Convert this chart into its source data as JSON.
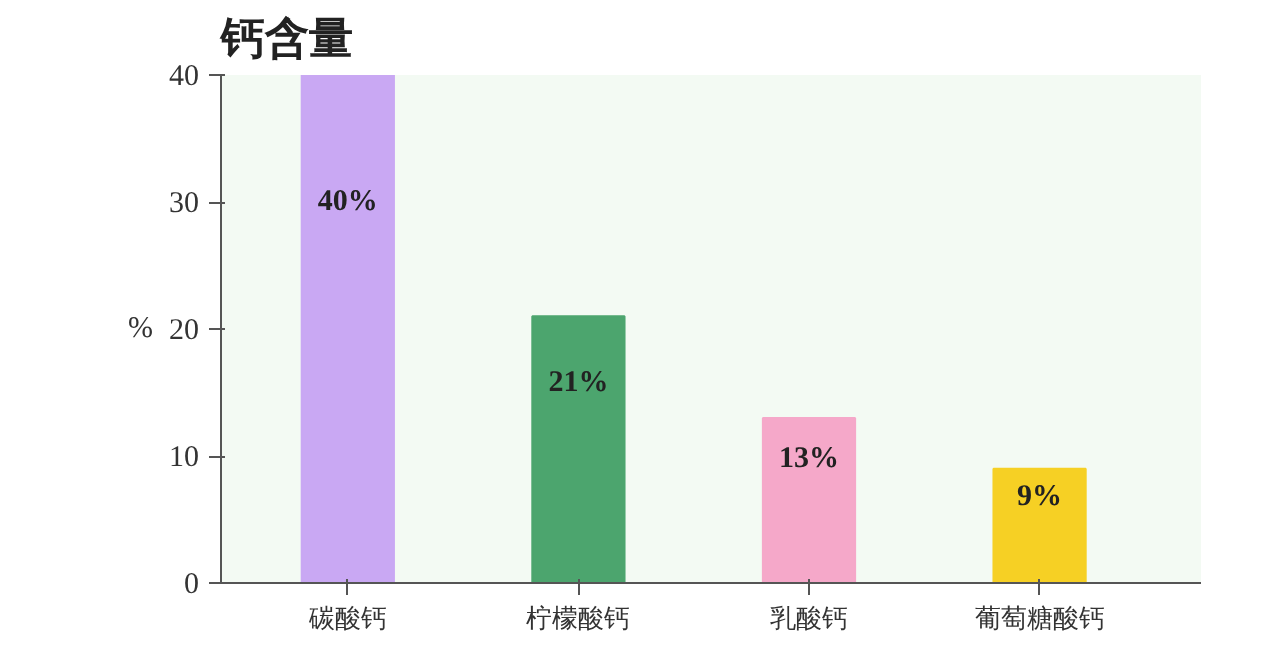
{
  "chart_data": {
    "type": "bar",
    "title": "钙含量",
    "ylabel": "%",
    "categories": [
      "碳酸钙",
      "柠檬酸钙",
      "乳酸钙",
      "葡萄糖酸钙"
    ],
    "values": [
      40,
      21,
      13,
      9
    ],
    "colors": [
      "#c9a8f3",
      "#4ca56e",
      "#f5a8c9",
      "#f6d024"
    ],
    "value_labels": [
      "40%",
      "21%",
      "13%",
      "9%"
    ],
    "ylim": [
      0,
      40
    ],
    "yticks": [
      0,
      10,
      20,
      30,
      40
    ],
    "grid": false
  }
}
